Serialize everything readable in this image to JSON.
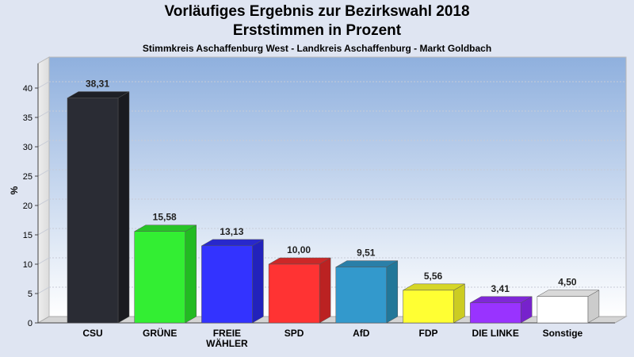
{
  "header": {
    "title_line1": "Vorläufiges Ergebnis zur Bezirkswahl 2018",
    "title_line2": "Erststimmen in Prozent",
    "subtitle": "Stimmkreis Aschaffenburg West - Landkreis Aschaffenburg - Markt Goldbach"
  },
  "chart_data": {
    "type": "bar",
    "title": "Vorläufiges Ergebnis zur Bezirkswahl 2018 Erststimmen in Prozent",
    "subtitle": "Stimmkreis Aschaffenburg West - Landkreis Aschaffenburg - Markt Goldbach",
    "categories": [
      "CSU",
      "GRÜNE",
      "FREIE WÄHLER",
      "SPD",
      "AfD",
      "FDP",
      "DIE LINKE",
      "Sonstige"
    ],
    "category_lines": [
      [
        "CSU"
      ],
      [
        "GRÜNE"
      ],
      [
        "FREIE",
        "WÄHLER"
      ],
      [
        "SPD"
      ],
      [
        "AfD"
      ],
      [
        "FDP"
      ],
      [
        "DIE LINKE"
      ],
      [
        "Sonstige"
      ]
    ],
    "values": [
      38.31,
      15.58,
      13.13,
      10.0,
      9.51,
      5.56,
      3.41,
      4.5
    ],
    "value_labels": [
      "38,31",
      "15,58",
      "13,13",
      "10,00",
      "9,51",
      "5,56",
      "3,41",
      "4,50"
    ],
    "colors": [
      "#2a2c34",
      "#33ee33",
      "#3333ff",
      "#ff3333",
      "#3399cc",
      "#ffff33",
      "#9933ff",
      "#ffffff"
    ],
    "side_colors": [
      "#1a1b20",
      "#22bb22",
      "#2222bb",
      "#bb2222",
      "#227799",
      "#cccc22",
      "#7722cc",
      "#cccccc"
    ],
    "top_colors": [
      "#1e2026",
      "#28c428",
      "#2828cc",
      "#cc2828",
      "#2a7fa8",
      "#d6d628",
      "#7f28d6",
      "#d9d9d9"
    ],
    "ylabel": "%",
    "xlabel": "",
    "ylim": [
      0,
      43
    ],
    "yticks": [
      0,
      5,
      10,
      15,
      20,
      25,
      30,
      35,
      40
    ],
    "grid": true,
    "legend": "none",
    "three_d": true
  }
}
